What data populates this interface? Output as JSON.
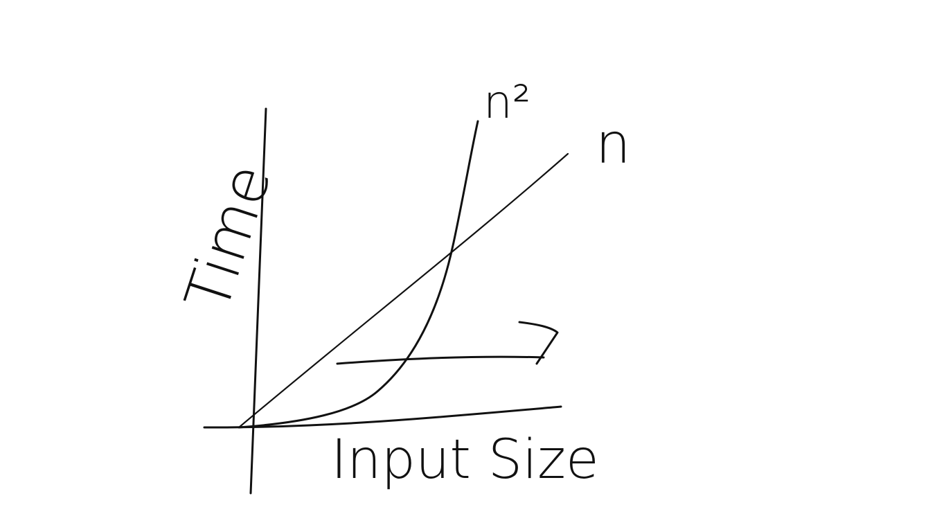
{
  "axes": {
    "y_label": "Time",
    "x_label": "Input Size"
  },
  "curves": [
    {
      "label": "n²"
    },
    {
      "label": "n"
    }
  ]
}
